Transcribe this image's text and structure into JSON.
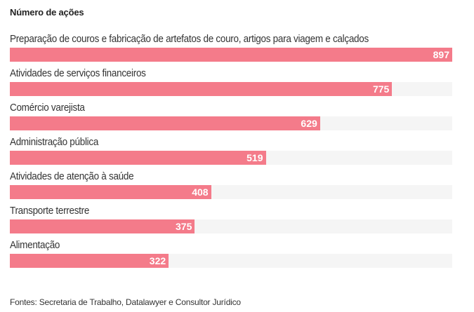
{
  "chart_data": {
    "type": "bar",
    "orientation": "horizontal",
    "title": "Número de ações",
    "categories": [
      "Preparação de couros e fabricação de artefatos de couro, artigos para viagem e calçados",
      "Atividades de serviços financeiros",
      "Comércio varejista",
      "Administração pública",
      "Atividades de atenção à saúde",
      "Transporte terrestre",
      "Alimentação"
    ],
    "values": [
      897,
      775,
      629,
      519,
      408,
      375,
      322
    ],
    "xlim": [
      0,
      897
    ],
    "grid": false,
    "xlabel": "",
    "ylabel": "",
    "source": "Fontes: Secretaria de Trabalho, Datalawyer e Consultor Jurídico"
  },
  "colors": {
    "bar": "#f47b8a",
    "track": "#f5f5f5"
  }
}
